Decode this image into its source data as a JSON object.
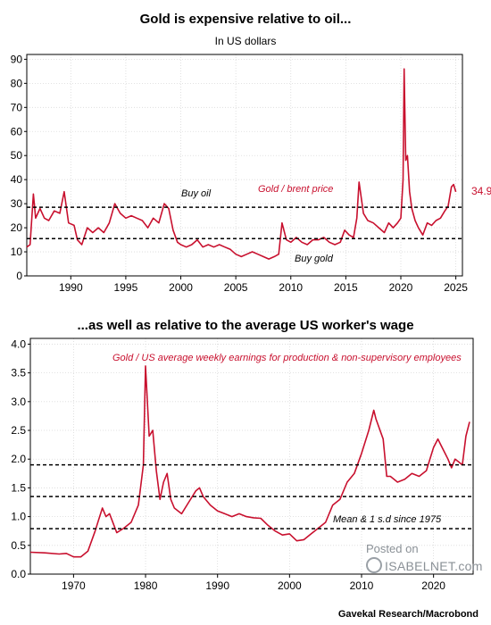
{
  "chart_data": [
    {
      "type": "line",
      "title": "Gold is expensive relative to oil...",
      "subtitle": "In US dollars",
      "xlim": [
        1986,
        2025.6
      ],
      "ylim": [
        0,
        92
      ],
      "xticks": [
        1990,
        1995,
        2000,
        2005,
        2010,
        2015,
        2020,
        2025
      ],
      "yticks": [
        0,
        10,
        20,
        30,
        40,
        50,
        60,
        70,
        80,
        90
      ],
      "series": [
        {
          "name": "Gold / brent price",
          "color": "#c8102e",
          "x": [
            1986.0,
            1986.3,
            1986.6,
            1986.8,
            1987.2,
            1987.6,
            1988.0,
            1988.5,
            1989.0,
            1989.4,
            1989.8,
            1990.3,
            1990.6,
            1991.0,
            1991.5,
            1992.0,
            1992.5,
            1993.0,
            1993.5,
            1994.0,
            1994.5,
            1995.0,
            1995.5,
            1996.0,
            1996.5,
            1997.0,
            1997.5,
            1998.0,
            1998.5,
            1998.9,
            1999.3,
            1999.7,
            2000.0,
            2000.5,
            2001.0,
            2001.5,
            2002.0,
            2002.5,
            2003.0,
            2003.5,
            2004.0,
            2004.5,
            2005.0,
            2005.5,
            2006.0,
            2006.5,
            2007.0,
            2007.5,
            2008.0,
            2008.5,
            2008.9,
            2009.2,
            2009.6,
            2010.0,
            2010.5,
            2011.0,
            2011.5,
            2012.0,
            2012.5,
            2013.0,
            2013.5,
            2014.0,
            2014.5,
            2014.9,
            2015.3,
            2015.7,
            2016.0,
            2016.2,
            2016.6,
            2017.0,
            2017.5,
            2018.0,
            2018.5,
            2018.9,
            2019.3,
            2019.7,
            2020.0,
            2020.2,
            2020.3,
            2020.45,
            2020.6,
            2020.8,
            2021.0,
            2021.3,
            2021.6,
            2022.0,
            2022.4,
            2022.8,
            2023.2,
            2023.6,
            2024.0,
            2024.3,
            2024.6,
            2024.8,
            2025.0
          ],
          "values": [
            12,
            13,
            34,
            24,
            28,
            24,
            23,
            27,
            26,
            35,
            22,
            21,
            15,
            13,
            20,
            18,
            20,
            18,
            22,
            30,
            26,
            24,
            25,
            24,
            23,
            20,
            24,
            22,
            30,
            28,
            19,
            14,
            13,
            12,
            13,
            15,
            12,
            13,
            12,
            13,
            12,
            11,
            9,
            8,
            9,
            10,
            9,
            8,
            7,
            8,
            9,
            22,
            15,
            14,
            16,
            14,
            13,
            15,
            15,
            16,
            14,
            13,
            14,
            19,
            17,
            16,
            24,
            39,
            26,
            23,
            22,
            20,
            18,
            22,
            20,
            22,
            24,
            40,
            86,
            48,
            50,
            35,
            28,
            23,
            20,
            17,
            22,
            21,
            23,
            24,
            27,
            29,
            37,
            38,
            34.9
          ]
        }
      ],
      "hlines": [
        28.5,
        15.5
      ],
      "last_value_label": "34.9",
      "annotations": [
        "Buy oil",
        "Buy gold",
        "Gold / brent price"
      ]
    },
    {
      "type": "line",
      "title": "...as well as relative to the average US worker's wage",
      "xlim": [
        1964,
        2025.5
      ],
      "ylim": [
        0,
        4.1
      ],
      "xticks": [
        1970,
        1980,
        1990,
        2000,
        2010,
        2020
      ],
      "yticks": [
        "0.0",
        "0.5",
        "1.0",
        "1.5",
        "2.0",
        "2.5",
        "3.0",
        "3.5",
        "4.0"
      ],
      "series": [
        {
          "name": "Gold / US average weekly earnings for production & non-supervisory employees",
          "color": "#c8102e",
          "x": [
            1964.0,
            1966.0,
            1968.0,
            1969.0,
            1970.0,
            1971.0,
            1972.0,
            1973.0,
            1973.5,
            1974.0,
            1974.5,
            1975.0,
            1976.0,
            1977.0,
            1978.0,
            1979.0,
            1979.7,
            1980.0,
            1980.5,
            1981.0,
            1981.5,
            1982.0,
            1982.5,
            1983.0,
            1983.5,
            1984.0,
            1985.0,
            1986.0,
            1987.0,
            1987.5,
            1988.0,
            1989.0,
            1990.0,
            1991.0,
            1992.0,
            1993.0,
            1994.0,
            1995.0,
            1996.0,
            1997.0,
            1998.0,
            1999.0,
            2000.0,
            2001.0,
            2002.0,
            2003.0,
            2004.0,
            2005.0,
            2006.0,
            2007.0,
            2008.0,
            2009.0,
            2010.0,
            2011.0,
            2011.7,
            2012.0,
            2013.0,
            2013.5,
            2014.0,
            2015.0,
            2016.0,
            2017.0,
            2018.0,
            2019.0,
            2020.0,
            2020.6,
            2021.0,
            2022.0,
            2022.5,
            2023.0,
            2023.5,
            2024.0,
            2024.5,
            2025.0
          ],
          "values": [
            0.38,
            0.37,
            0.35,
            0.36,
            0.3,
            0.3,
            0.4,
            0.75,
            0.95,
            1.15,
            1.0,
            1.05,
            0.72,
            0.8,
            0.9,
            1.2,
            1.9,
            3.62,
            2.4,
            2.5,
            1.8,
            1.3,
            1.6,
            1.75,
            1.3,
            1.15,
            1.05,
            1.25,
            1.45,
            1.5,
            1.35,
            1.2,
            1.1,
            1.05,
            1.0,
            1.05,
            1.0,
            0.98,
            0.97,
            0.85,
            0.75,
            0.68,
            0.7,
            0.58,
            0.6,
            0.7,
            0.8,
            0.9,
            1.2,
            1.3,
            1.6,
            1.75,
            2.1,
            2.5,
            2.85,
            2.7,
            2.35,
            1.7,
            1.7,
            1.6,
            1.65,
            1.75,
            1.7,
            1.8,
            2.2,
            2.35,
            2.25,
            2.0,
            1.85,
            2.0,
            1.95,
            1.9,
            2.4,
            2.65
          ]
        }
      ],
      "hlines": [
        1.9,
        1.35,
        0.79
      ],
      "annotations": [
        "Mean & 1 s.d since 1975",
        "Gold / US average weekly earnings for production & non-supervisory employees"
      ]
    }
  ],
  "watermark": {
    "line1": "Posted on",
    "line2": "ISABELNET.com"
  },
  "source": "Gavekal Research/Macrobond"
}
